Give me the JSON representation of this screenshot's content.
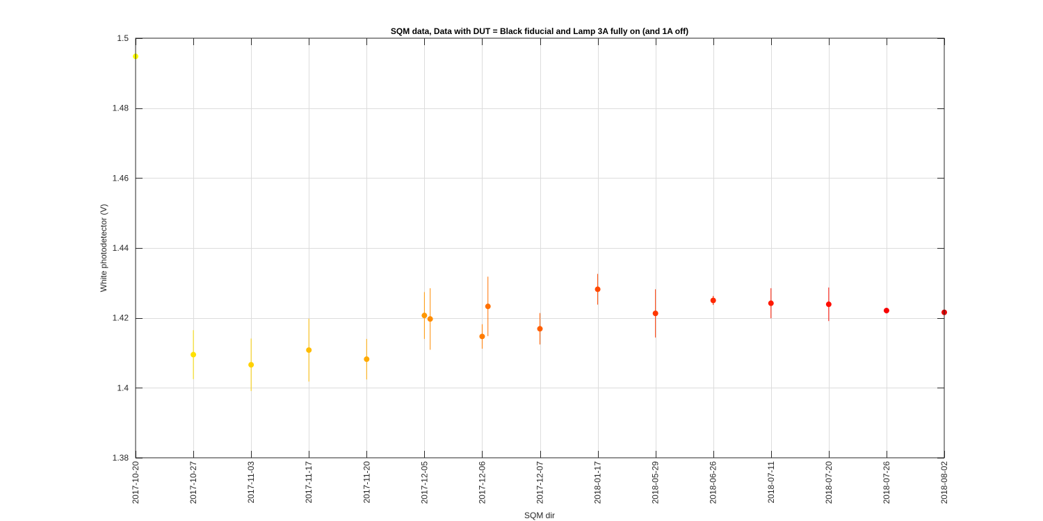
{
  "chart_data": {
    "type": "scatter",
    "title": "SQM data, Data with DUT = Black fiducial and Lamp 3A fully on (and 1A off)",
    "xlabel": "SQM dir",
    "ylabel": "White photodetector (V)",
    "ylim": [
      1.38,
      1.5
    ],
    "yticks": [
      1.38,
      1.4,
      1.42,
      1.44,
      1.46,
      1.48,
      1.5
    ],
    "ytick_labels": [
      "1.38",
      "1.4",
      "1.42",
      "1.44",
      "1.46",
      "1.48",
      "1.5"
    ],
    "xlim": [
      0,
      14
    ],
    "categories": [
      "2017-10-20",
      "2017-10-27",
      "2017-11-03",
      "2017-11-17",
      "2017-11-20",
      "2017-12-05",
      "2017-12-06",
      "2017-12-07",
      "2018-01-17",
      "2018-05-29",
      "2018-06-26",
      "2018-07-11",
      "2018-07-20",
      "2018-07-26",
      "2018-08-02"
    ],
    "grid": true,
    "points": [
      {
        "x": 0.0,
        "y": 1.4948,
        "err": 0.0002,
        "color": "#ffff00"
      },
      {
        "x": 1.0,
        "y": 1.4095,
        "err": 0.007,
        "color": "#ffe100"
      },
      {
        "x": 2.0,
        "y": 1.4066,
        "err": 0.0075,
        "color": "#ffd100"
      },
      {
        "x": 3.0,
        "y": 1.4108,
        "err": 0.009,
        "color": "#ffbc00"
      },
      {
        "x": 4.0,
        "y": 1.4082,
        "err": 0.0058,
        "color": "#ffaa00"
      },
      {
        "x": 5.0,
        "y": 1.4207,
        "err": 0.0067,
        "color": "#ff9700"
      },
      {
        "x": 5.1,
        "y": 1.4197,
        "err": 0.0088,
        "color": "#ff8c00"
      },
      {
        "x": 6.0,
        "y": 1.4147,
        "err": 0.0035,
        "color": "#ff7b00"
      },
      {
        "x": 6.1,
        "y": 1.4233,
        "err": 0.0085,
        "color": "#ff7000"
      },
      {
        "x": 7.0,
        "y": 1.4169,
        "err": 0.0045,
        "color": "#ff5e00"
      },
      {
        "x": 8.0,
        "y": 1.4282,
        "err": 0.0044,
        "color": "#ff4800"
      },
      {
        "x": 9.0,
        "y": 1.4213,
        "err": 0.0069,
        "color": "#ff3700"
      },
      {
        "x": 10.0,
        "y": 1.425,
        "err": 0.0013,
        "color": "#ff2800"
      },
      {
        "x": 11.0,
        "y": 1.4242,
        "err": 0.0043,
        "color": "#ff1800"
      },
      {
        "x": 12.0,
        "y": 1.4239,
        "err": 0.0048,
        "color": "#ff0c00"
      },
      {
        "x": 13.0,
        "y": 1.4221,
        "err": 0.0008,
        "color": "#f70000"
      },
      {
        "x": 14.0,
        "y": 1.4216,
        "err": 0.0008,
        "color": "#e80000"
      }
    ]
  }
}
